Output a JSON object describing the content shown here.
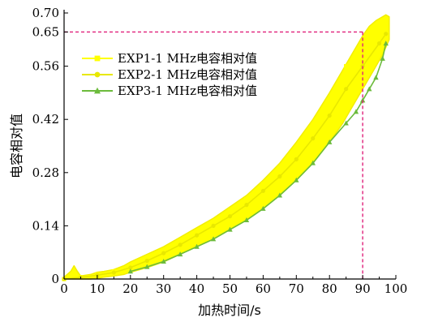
{
  "chart_data": {
    "type": "line",
    "title": "",
    "xlabel": "加热时间/s",
    "ylabel": "电容相对值",
    "xlim": [
      0,
      100
    ],
    "ylim": [
      0,
      0.7
    ],
    "x_ticks": [
      0,
      10,
      20,
      30,
      40,
      50,
      60,
      70,
      80,
      90,
      100
    ],
    "y_ticks": [
      0,
      0.14,
      0.28,
      0.42,
      0.56,
      0.65,
      0.7
    ],
    "x_tick_labels": [
      "0",
      "10",
      "20",
      "30",
      "40",
      "50",
      "60",
      "70",
      "80",
      "90",
      "100"
    ],
    "y_tick_labels": [
      "0",
      "0.14",
      "0.28",
      "0.42",
      "0.56",
      "0.65",
      "0.70"
    ],
    "grid": false,
    "legend_position": "top-left",
    "reference_point": {
      "x": 90,
      "y": 0.65,
      "color": "#e0207a"
    },
    "band": {
      "name": "EXP1-1 MHz / EXP2-1 MHz envelope",
      "color": "#ffff00",
      "x": [
        0,
        2,
        3,
        4,
        5,
        8,
        10,
        12,
        15,
        18,
        20,
        25,
        30,
        35,
        40,
        45,
        50,
        55,
        60,
        65,
        70,
        75,
        80,
        84,
        86,
        88,
        90,
        92,
        94,
        96,
        97,
        98
      ],
      "upper": [
        0.005,
        0.02,
        0.035,
        0.02,
        0.008,
        0.012,
        0.018,
        0.02,
        0.025,
        0.035,
        0.045,
        0.065,
        0.085,
        0.11,
        0.135,
        0.16,
        0.19,
        0.22,
        0.26,
        0.305,
        0.36,
        0.42,
        0.49,
        0.55,
        0.58,
        0.61,
        0.64,
        0.665,
        0.68,
        0.69,
        0.695,
        0.69
      ],
      "lower": [
        0.0,
        0.0,
        0.0,
        0.0,
        0.0,
        0.0,
        0.002,
        0.005,
        0.008,
        0.012,
        0.018,
        0.03,
        0.045,
        0.065,
        0.085,
        0.105,
        0.13,
        0.155,
        0.185,
        0.22,
        0.26,
        0.305,
        0.36,
        0.41,
        0.44,
        0.47,
        0.5,
        0.53,
        0.56,
        0.59,
        0.61,
        0.63
      ]
    },
    "series": [
      {
        "name": "EXP1-1 MHz电容相对值",
        "marker": "square",
        "color": "#ffff00",
        "x": [
          0,
          5,
          10,
          15,
          20,
          25,
          30,
          35,
          40,
          45,
          50,
          55,
          60,
          65,
          70,
          75,
          80,
          85,
          90,
          95,
          97
        ],
        "y": [
          0.0,
          0.005,
          0.012,
          0.02,
          0.035,
          0.055,
          0.075,
          0.1,
          0.125,
          0.15,
          0.18,
          0.21,
          0.25,
          0.29,
          0.34,
          0.4,
          0.47,
          0.56,
          0.62,
          0.67,
          0.68
        ]
      },
      {
        "name": "EXP2-1 MHz电容相对值",
        "marker": "circle",
        "color": "#e8e800",
        "x": [
          0,
          5,
          10,
          15,
          20,
          25,
          30,
          35,
          40,
          45,
          50,
          55,
          60,
          65,
          70,
          75,
          80,
          85,
          90,
          95,
          97
        ],
        "y": [
          0.0,
          0.004,
          0.01,
          0.017,
          0.03,
          0.048,
          0.068,
          0.09,
          0.115,
          0.14,
          0.165,
          0.195,
          0.232,
          0.27,
          0.315,
          0.37,
          0.43,
          0.5,
          0.56,
          0.62,
          0.645
        ]
      },
      {
        "name": "EXP3-1 MHz电容相对值",
        "marker": "triangle",
        "color": "#6cbb3c",
        "x": [
          20,
          25,
          30,
          35,
          40,
          45,
          50,
          55,
          60,
          65,
          70,
          75,
          80,
          85,
          88,
          90,
          92,
          94,
          96,
          97
        ],
        "y": [
          0.02,
          0.032,
          0.046,
          0.065,
          0.085,
          0.105,
          0.13,
          0.155,
          0.185,
          0.22,
          0.26,
          0.305,
          0.36,
          0.41,
          0.44,
          0.47,
          0.5,
          0.53,
          0.58,
          0.62
        ]
      }
    ]
  }
}
